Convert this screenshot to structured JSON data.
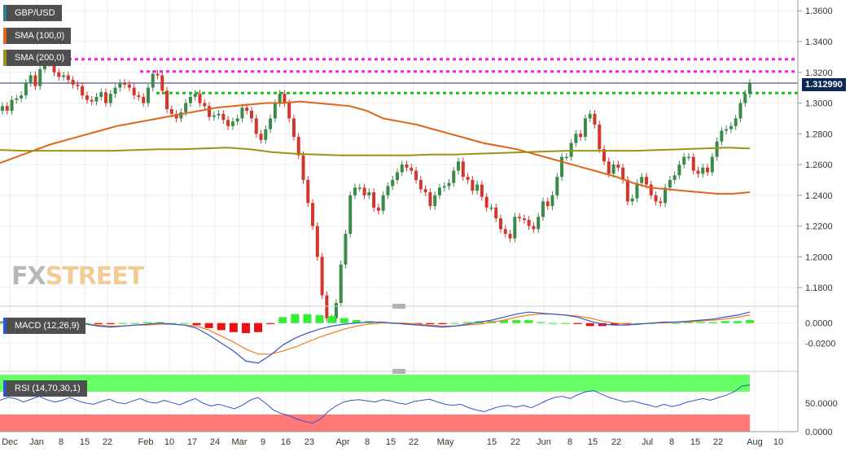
{
  "instrument": "GBP/USD",
  "legend": {
    "price": "GBP/USD",
    "sma100": "SMA (100,0)",
    "sma200": "SMA (200,0)",
    "macd": "MACD (12,26,9)",
    "rsi": "RSI (14,70,30,1)"
  },
  "last_price_label": "1.312990",
  "logo": {
    "fx": "FX",
    "street": "STREET"
  },
  "colors": {
    "up": "#3a8a4a",
    "down": "#d3362a",
    "sma100": "#e0641a",
    "sma200": "#9a9415",
    "resistance": "#ee22ee",
    "support": "#22bb22",
    "last_price_line": "#1d2f6b",
    "macd_line": "#3355cc",
    "signal_line": "#ef7d22",
    "hist_pos": "#33ee33",
    "hist_neg": "#ee1111",
    "rsi_line": "#3355cc",
    "overbought": "#66ff66",
    "oversold": "#ff7777"
  },
  "chart_data": {
    "type": "candlestick",
    "x_tick_labels": [
      "Dec",
      "Jan",
      "8",
      "15",
      "22",
      "Feb",
      "10",
      "17",
      "24",
      "Mar",
      "9",
      "16",
      "23",
      "Apr",
      "8",
      "15",
      "22",
      "May",
      "15",
      "22",
      "Jun",
      "8",
      "15",
      "22",
      "Jul",
      "8",
      "15",
      "22",
      "Aug",
      "10"
    ],
    "price_axis": {
      "ylim": [
        1.17,
        1.367
      ],
      "ticks": [
        1.36,
        1.34,
        1.32,
        1.3,
        1.28,
        1.26,
        1.24,
        1.22,
        1.2,
        1.18
      ],
      "tick_labels": [
        "1.3600",
        "1.3400",
        "1.3200",
        "1.3000",
        "1.2800",
        "1.2600",
        "1.2400",
        "1.2200",
        "1.2000",
        "1.1800"
      ]
    },
    "last_price": 1.31299,
    "horizontal_levels": [
      {
        "value": 1.3285,
        "style": "magenta-dotted"
      },
      {
        "value": 1.3205,
        "style": "magenta-dotted"
      },
      {
        "value": 1.3065,
        "style": "green-dotted"
      }
    ],
    "closes": [
      1.298,
      1.295,
      1.302,
      1.303,
      1.305,
      1.313,
      1.318,
      1.311,
      1.322,
      1.328,
      1.326,
      1.32,
      1.317,
      1.318,
      1.315,
      1.312,
      1.311,
      1.305,
      1.302,
      1.301,
      1.304,
      1.307,
      1.3,
      1.306,
      1.31,
      1.313,
      1.312,
      1.31,
      1.305,
      1.304,
      1.3,
      1.31,
      1.319,
      1.318,
      1.308,
      1.296,
      1.293,
      1.29,
      1.294,
      1.3,
      1.304,
      1.306,
      1.3,
      1.298,
      1.291,
      1.292,
      1.293,
      1.289,
      1.285,
      1.288,
      1.29,
      1.297,
      1.295,
      1.29,
      1.28,
      1.276,
      1.283,
      1.29,
      1.3,
      1.306,
      1.3,
      1.29,
      1.278,
      1.266,
      1.25,
      1.235,
      1.22,
      1.2,
      1.175,
      1.16,
      1.16,
      1.17,
      1.195,
      1.215,
      1.24,
      1.245,
      1.245,
      1.24,
      1.242,
      1.232,
      1.23,
      1.24,
      1.246,
      1.25,
      1.255,
      1.26,
      1.258,
      1.256,
      1.25,
      1.244,
      1.242,
      1.233,
      1.24,
      1.245,
      1.246,
      1.248,
      1.256,
      1.262,
      1.252,
      1.25,
      1.243,
      1.247,
      1.239,
      1.232,
      1.232,
      1.225,
      1.218,
      1.215,
      1.212,
      1.226,
      1.225,
      1.224,
      1.22,
      1.218,
      1.226,
      1.236,
      1.233,
      1.24,
      1.252,
      1.265,
      1.265,
      1.274,
      1.28,
      1.278,
      1.29,
      1.293,
      1.286,
      1.27,
      1.262,
      1.254,
      1.26,
      1.258,
      1.25,
      1.236,
      1.238,
      1.248,
      1.252,
      1.247,
      1.24,
      1.236,
      1.235,
      1.245,
      1.25,
      1.253,
      1.26,
      1.265,
      1.265,
      1.256,
      1.254,
      1.258,
      1.255,
      1.265,
      1.275,
      1.282,
      1.283,
      1.285,
      1.29,
      1.3,
      1.306,
      1.313
    ],
    "sma100": [
      1.261,
      1.265,
      1.269,
      1.273,
      1.276,
      1.279,
      1.282,
      1.285,
      1.287,
      1.289,
      1.291,
      1.293,
      1.295,
      1.297,
      1.298,
      1.299,
      1.3,
      1.3,
      1.301,
      1.3,
      1.299,
      1.298,
      1.295,
      1.29,
      1.288,
      1.286,
      1.283,
      1.28,
      1.277,
      1.274,
      1.272,
      1.27,
      1.267,
      1.264,
      1.261,
      1.258,
      1.255,
      1.252,
      1.248,
      1.245,
      1.244,
      1.243,
      1.242,
      1.241,
      1.241,
      1.242
    ],
    "sma200": [
      1.2695,
      1.269,
      1.269,
      1.269,
      1.269,
      1.269,
      1.2695,
      1.27,
      1.27,
      1.2705,
      1.271,
      1.27,
      1.268,
      1.267,
      1.2665,
      1.266,
      1.266,
      1.266,
      1.266,
      1.2665,
      1.2665,
      1.267,
      1.2675,
      1.268,
      1.2685,
      1.269,
      1.269,
      1.269,
      1.269,
      1.2695,
      1.27,
      1.2705,
      1.271,
      1.2705
    ],
    "macd": {
      "axis": {
        "ylim": [
          -0.045,
          0.012
        ],
        "ticks": [
          0.0,
          -0.02
        ],
        "tick_labels": [
          "0.0000",
          "-0.0200"
        ]
      },
      "macd_line": [
        0.001,
        0.002,
        0.001,
        0.0,
        -0.001,
        0.0,
        0.001,
        -0.001,
        -0.003,
        -0.004,
        -0.003,
        -0.002,
        -0.001,
        0.0,
        -0.001,
        -0.002,
        -0.005,
        -0.012,
        -0.02,
        -0.028,
        -0.038,
        -0.04,
        -0.032,
        -0.022,
        -0.015,
        -0.01,
        -0.006,
        -0.003,
        -0.001,
        0.0,
        0.001,
        0.001,
        0.0,
        -0.001,
        -0.002,
        -0.003,
        -0.004,
        -0.003,
        -0.001,
        0.001,
        0.003,
        0.006,
        0.009,
        0.011,
        0.01,
        0.009,
        0.008,
        0.006,
        0.002,
        -0.001,
        -0.002,
        -0.002,
        -0.001,
        0.0,
        0.001,
        0.001,
        0.002,
        0.003,
        0.004,
        0.006,
        0.008,
        0.011
      ],
      "signal_line": [
        0.001,
        0.001,
        0.001,
        0.0,
        0.0,
        0.0,
        0.0,
        -0.001,
        -0.002,
        -0.003,
        -0.003,
        -0.002,
        -0.002,
        -0.001,
        -0.001,
        -0.002,
        -0.003,
        -0.007,
        -0.013,
        -0.019,
        -0.026,
        -0.031,
        -0.031,
        -0.028,
        -0.024,
        -0.019,
        -0.014,
        -0.01,
        -0.006,
        -0.003,
        -0.001,
        0.0,
        0.0,
        0.0,
        -0.001,
        -0.002,
        -0.003,
        -0.003,
        -0.002,
        -0.001,
        0.001,
        0.003,
        0.006,
        0.008,
        0.009,
        0.009,
        0.008,
        0.007,
        0.005,
        0.002,
        0.0,
        -0.001,
        -0.001,
        0.0,
        0.0,
        0.001,
        0.001,
        0.002,
        0.003,
        0.004,
        0.006,
        0.008
      ],
      "histogram": [
        0.0,
        0.001,
        0.0,
        0.0,
        -0.001,
        0.0,
        0.001,
        0.0,
        -0.001,
        -0.001,
        0.0,
        0.0,
        0.001,
        0.001,
        0.0,
        0.0,
        -0.002,
        -0.005,
        -0.007,
        -0.009,
        -0.01,
        -0.009,
        -0.001,
        0.006,
        0.009,
        0.009,
        0.008,
        0.007,
        0.005,
        0.003,
        0.002,
        0.001,
        0.0,
        -0.001,
        -0.001,
        -0.001,
        -0.001,
        0.0,
        0.001,
        0.002,
        0.002,
        0.003,
        0.003,
        0.003,
        0.001,
        0.0,
        0.0,
        -0.001,
        -0.003,
        -0.003,
        -0.002,
        -0.001,
        0.0,
        0.0,
        0.001,
        0.0,
        0.001,
        0.001,
        0.001,
        0.002,
        0.002,
        0.003
      ]
    },
    "rsi": {
      "axis": {
        "ylim": [
          0,
          100
        ],
        "ticks": [
          50,
          0
        ],
        "tick_labels": [
          "50.0000",
          "0.0000"
        ]
      },
      "overbought": 70,
      "oversold": 30,
      "values": [
        55,
        60,
        58,
        52,
        57,
        62,
        56,
        52,
        55,
        60,
        54,
        50,
        48,
        53,
        57,
        51,
        49,
        54,
        58,
        52,
        50,
        55,
        51,
        47,
        53,
        58,
        50,
        45,
        48,
        44,
        40,
        46,
        55,
        60,
        50,
        38,
        32,
        28,
        22,
        18,
        15,
        22,
        35,
        45,
        52,
        55,
        56,
        54,
        52,
        56,
        54,
        50,
        48,
        53,
        55,
        57,
        52,
        48,
        46,
        48,
        42,
        38,
        35,
        40,
        44,
        46,
        43,
        46,
        42,
        48,
        55,
        60,
        62,
        58,
        65,
        70,
        72,
        66,
        60,
        56,
        52,
        54,
        50,
        47,
        43,
        48,
        44,
        47,
        52,
        55,
        58,
        55,
        60,
        64,
        70,
        80,
        82
      ]
    }
  }
}
